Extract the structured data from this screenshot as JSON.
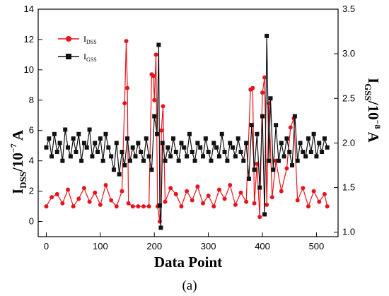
{
  "chart_data": {
    "type": "line",
    "panel_label": "(a)",
    "xlabel": "Data Point",
    "ylabel_left": {
      "main": "I",
      "sub": "DSS",
      "rest": "/10",
      "sup": "−7",
      "unit": " A"
    },
    "ylabel_right": {
      "main": "I",
      "sub": "GSS",
      "rest": "/10",
      "sup": "−8",
      "unit": " A"
    },
    "xlim": [
      -15,
      540
    ],
    "ylim_left": [
      -1,
      14
    ],
    "ylim_right": [
      0.95,
      3.5
    ],
    "x_ticks": [
      0,
      100,
      200,
      300,
      400,
      500
    ],
    "y_left_ticks": [
      0,
      2,
      4,
      6,
      8,
      10,
      12,
      14
    ],
    "y_right_ticks": [
      "1.0",
      "1.5",
      "2.0",
      "2.5",
      "3.0",
      "3.5"
    ],
    "series": [
      {
        "name": "DSS",
        "legend_main": "I",
        "legend_sub": "DSS",
        "color": "#e8141c",
        "marker": "circle",
        "axis": "left",
        "points": [
          [
            0,
            1.0
          ],
          [
            10,
            1.6
          ],
          [
            20,
            1.8
          ],
          [
            30,
            1.2
          ],
          [
            40,
            2.1
          ],
          [
            50,
            1.0
          ],
          [
            60,
            1.5
          ],
          [
            70,
            2.2
          ],
          [
            80,
            1.3
          ],
          [
            90,
            1.9
          ],
          [
            100,
            1.1
          ],
          [
            110,
            2.4
          ],
          [
            120,
            1.4
          ],
          [
            130,
            1.0
          ],
          [
            140,
            2.0
          ],
          [
            145,
            7.8
          ],
          [
            148,
            11.9
          ],
          [
            150,
            8.8
          ],
          [
            152,
            1.2
          ],
          [
            160,
            1.0
          ],
          [
            170,
            1.0
          ],
          [
            180,
            1.0
          ],
          [
            190,
            1.0
          ],
          [
            195,
            9.7
          ],
          [
            198,
            9.6
          ],
          [
            200,
            8.0
          ],
          [
            203,
            11.0
          ],
          [
            206,
            1.0
          ],
          [
            210,
            0.0
          ],
          [
            213,
            6.0
          ],
          [
            216,
            7.6
          ],
          [
            220,
            1.3
          ],
          [
            230,
            2.2
          ],
          [
            240,
            1.8
          ],
          [
            250,
            1.0
          ],
          [
            260,
            2.0
          ],
          [
            270,
            1.4
          ],
          [
            280,
            2.3
          ],
          [
            290,
            1.2
          ],
          [
            300,
            1.7
          ],
          [
            310,
            1.0
          ],
          [
            320,
            2.1
          ],
          [
            330,
            1.5
          ],
          [
            340,
            2.4
          ],
          [
            350,
            1.1
          ],
          [
            360,
            1.9
          ],
          [
            370,
            1.3
          ],
          [
            378,
            8.7
          ],
          [
            382,
            8.8
          ],
          [
            385,
            1.2
          ],
          [
            390,
            3.8
          ],
          [
            395,
            0.3
          ],
          [
            400,
            8.5
          ],
          [
            404,
            9.5
          ],
          [
            408,
            1.1
          ],
          [
            412,
            7.8
          ],
          [
            418,
            1.6
          ],
          [
            425,
            4.0
          ],
          [
            435,
            2.0
          ],
          [
            445,
            3.5
          ],
          [
            452,
            6.2
          ],
          [
            458,
            6.8
          ],
          [
            465,
            1.4
          ],
          [
            475,
            2.2
          ],
          [
            485,
            1.0
          ],
          [
            495,
            2.0
          ],
          [
            505,
            1.3
          ],
          [
            515,
            1.8
          ],
          [
            520,
            1.0
          ]
        ]
      },
      {
        "name": "GSS",
        "legend_main": "I",
        "legend_sub": "GSS",
        "color": "#111111",
        "marker": "square",
        "axis": "right",
        "points": [
          [
            0,
            1.95
          ],
          [
            5,
            2.05
          ],
          [
            10,
            1.85
          ],
          [
            15,
            2.1
          ],
          [
            20,
            1.9
          ],
          [
            25,
            2.0
          ],
          [
            30,
            1.8
          ],
          [
            35,
            2.15
          ],
          [
            40,
            1.95
          ],
          [
            45,
            1.85
          ],
          [
            50,
            2.05
          ],
          [
            55,
            1.9
          ],
          [
            60,
            2.1
          ],
          [
            65,
            1.8
          ],
          [
            70,
            2.0
          ],
          [
            75,
            1.95
          ],
          [
            80,
            2.15
          ],
          [
            85,
            1.85
          ],
          [
            90,
            2.0
          ],
          [
            95,
            1.9
          ],
          [
            100,
            2.05
          ],
          [
            105,
            1.8
          ],
          [
            110,
            2.1
          ],
          [
            115,
            1.95
          ],
          [
            120,
            1.85
          ],
          [
            125,
            1.7
          ],
          [
            130,
            2.0
          ],
          [
            135,
            1.65
          ],
          [
            140,
            1.9
          ],
          [
            145,
            1.75
          ],
          [
            150,
            2.05
          ],
          [
            155,
            1.8
          ],
          [
            160,
            1.95
          ],
          [
            165,
            1.85
          ],
          [
            170,
            2.0
          ],
          [
            175,
            1.9
          ],
          [
            180,
            1.8
          ],
          [
            185,
            2.05
          ],
          [
            190,
            1.85
          ],
          [
            195,
            1.7
          ],
          [
            200,
            2.3
          ],
          [
            205,
            2.1
          ],
          [
            208,
            3.1
          ],
          [
            210,
            1.3
          ],
          [
            212,
            1.05
          ],
          [
            215,
            2.0
          ],
          [
            220,
            1.8
          ],
          [
            225,
            1.95
          ],
          [
            230,
            1.85
          ],
          [
            235,
            2.05
          ],
          [
            240,
            1.9
          ],
          [
            245,
            1.8
          ],
          [
            250,
            2.0
          ],
          [
            255,
            1.95
          ],
          [
            260,
            1.85
          ],
          [
            265,
            2.1
          ],
          [
            270,
            1.9
          ],
          [
            275,
            1.8
          ],
          [
            280,
            2.0
          ],
          [
            285,
            1.95
          ],
          [
            290,
            1.85
          ],
          [
            295,
            2.05
          ],
          [
            300,
            1.9
          ],
          [
            305,
            1.8
          ],
          [
            310,
            2.0
          ],
          [
            315,
            1.95
          ],
          [
            320,
            1.85
          ],
          [
            325,
            2.1
          ],
          [
            330,
            1.9
          ],
          [
            335,
            1.8
          ],
          [
            340,
            2.0
          ],
          [
            345,
            1.95
          ],
          [
            350,
            1.85
          ],
          [
            355,
            2.05
          ],
          [
            360,
            1.9
          ],
          [
            365,
            1.8
          ],
          [
            370,
            2.0
          ],
          [
            375,
            1.6
          ],
          [
            380,
            2.2
          ],
          [
            385,
            1.7
          ],
          [
            390,
            2.1
          ],
          [
            395,
            1.5
          ],
          [
            400,
            2.3
          ],
          [
            404,
            1.2
          ],
          [
            408,
            3.2
          ],
          [
            412,
            1.8
          ],
          [
            415,
            2.5
          ],
          [
            420,
            1.7
          ],
          [
            425,
            2.2
          ],
          [
            430,
            1.8
          ],
          [
            435,
            2.0
          ],
          [
            440,
            1.85
          ],
          [
            445,
            2.05
          ],
          [
            450,
            1.9
          ],
          [
            455,
            1.75
          ],
          [
            460,
            2.3
          ],
          [
            465,
            1.8
          ],
          [
            470,
            2.0
          ],
          [
            475,
            1.9
          ],
          [
            480,
            1.85
          ],
          [
            485,
            2.05
          ],
          [
            490,
            1.9
          ],
          [
            495,
            2.1
          ],
          [
            500,
            1.85
          ],
          [
            505,
            2.0
          ],
          [
            510,
            1.9
          ],
          [
            515,
            2.05
          ],
          [
            520,
            1.95
          ]
        ]
      }
    ],
    "legend_position": "top-left",
    "grid": false
  }
}
